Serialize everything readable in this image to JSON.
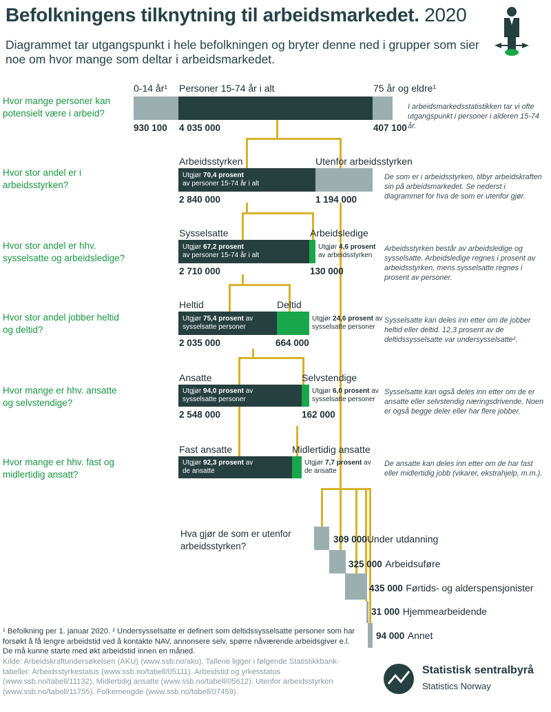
{
  "header": {
    "title": "Befolkningens tilknytning til arbeidsmarkedet.",
    "year": "2020",
    "subtitle": "Diagrammet tar utgangspunkt i hele befolkningen og bryter denne ned i grupper som sier noe om hvor mange som deltar i arbeidsmarkedet."
  },
  "questions": {
    "q1": "Hvor mange personer kan potensielt være i arbeid?",
    "q2": "Hvor stor andel er i arbeidsstyrken?",
    "q3": "Hvor stor andel er hhv. sysselsatte og arbeidsledige?",
    "q4": "Hvor stor andel jobber heltid og deltid?",
    "q5": "Hvor mange er hhv. ansatte og selvstendige?",
    "q6": "Hvor mange er hhv. fast og midlertidig ansatt?",
    "q7": "Hva gjør de som er utenfor arbeidsstyrken?"
  },
  "row1": {
    "left_label": "0-14 år¹",
    "mid_label": "Personer 15-74 år i alt",
    "right_label": "75 år og eldre¹",
    "left_value": "930 100",
    "mid_value": "4 035 000",
    "right_value": "407 100",
    "note": "I arbeidsmarkedsstatistikken tar vi ofte utgangspunkt i personer i alderen 15-74 år."
  },
  "row2": {
    "left_label": "Arbeidsstyrken",
    "right_label": "Utenfor arbeidsstyrken",
    "inbar_prefix": "Utgjør",
    "inbar_pct": "70,4 prosent",
    "inbar_line2": "av personer 15-74 år i alt",
    "left_value": "2 840 000",
    "right_value": "1 194 000",
    "note": "De som er i arbeidsstyrken, tilbyr arbeidskraften sin på arbeidsmarkedet. Se nederst i diagrammet for hva de som er utenfor gjør."
  },
  "row3": {
    "left_label": "Sysselsatte",
    "right_label": "Arbeidsledige",
    "inbar_prefix": "Utgjør",
    "inbar_pct": "67,2 prosent",
    "inbar_line2": "av personer 15-74 år i alt",
    "out_prefix": "Utgjør",
    "out_pct": "4,6 prosent",
    "out_line2": "av arbeidsstyrken",
    "left_value": "2 710 000",
    "right_value": "130 000",
    "note": "Arbeidsstyrken består av arbeidsledige og sysselsatte. Arbeidsledige regnes i prosent av arbeidsstyrken, mens sysselsatte regnes i prosent av personer."
  },
  "row4": {
    "left_label": "Heltid",
    "right_label": "Deltid",
    "inbar_prefix": "Utgjør",
    "inbar_pct": "75,4 prosent",
    "inbar_suffix": "av",
    "inbar_line2": "sysselsatte personer",
    "out_prefix": "Utgjør",
    "out_pct": "24,6 prosent",
    "out_suffix": "av",
    "out_line2": "sysselsatte personer",
    "left_value": "2 035 000",
    "right_value": "664 000",
    "note": "Sysselsatte kan deles inn etter om de jobber heltid eller deltid. 12,3 prosent av de deltidssysselsatte var undersysselsatte²."
  },
  "row5": {
    "left_label": "Ansatte",
    "right_label": "Selvstendige",
    "inbar_prefix": "Utgjør",
    "inbar_pct": "94,0 prosent",
    "inbar_suffix": "av",
    "inbar_line2": "sysselsatte personer",
    "out_prefix": "Utgjør",
    "out_pct": "6,0 prosent",
    "out_suffix": "av",
    "out_line2": "sysselsatte personer",
    "left_value": "2 548 000",
    "right_value": "162 000",
    "note": "Sysselsatte kan også deles inn etter om de er ansatte eller selvstendig næringsdrivende. Noen er også begge deler eller har flere jobber."
  },
  "row6": {
    "left_label": "Fast ansatte",
    "right_label": "Midlertidig ansatte",
    "inbar_prefix": "Utgjør",
    "inbar_pct": "92,3 prosent",
    "inbar_suffix": "av",
    "inbar_line2": "de ansatte",
    "out_prefix": "Utgjør",
    "out_pct": "7,7 prosent",
    "out_suffix": "av",
    "out_line2": "de ansatte",
    "note": "De ansatte kan deles inn etter om de har fast eller midlertidig jobb (vikarer, ekstrahjelp, m.m.)."
  },
  "outside": [
    {
      "value": "309 000",
      "label": "Under utdanning"
    },
    {
      "value": "325 000",
      "label": "Arbeidsuføre"
    },
    {
      "value": "435 000",
      "label": "Førtids- og alderspensjonister"
    },
    {
      "value": "31 000",
      "label": "Hjemmearbeidende"
    },
    {
      "value": "94 000",
      "label": "Annet"
    }
  ],
  "footnote": "¹ Befolkning per 1. januar 2020. ² Undersysselsatte er definert som deltidssysselsatte personer som har forsøkt å få lengre arbeidstid ved å kontakte NAV, annonsere selv, spørre nåværende arbeidsgiver e.l. De må kunne starte med økt arbeidstid innen en måned.",
  "sources": "Kilde: Arbeidskraftundersøkelsen (AKU) (www.ssb.no/aku). Tallene ligger i følgende Statistikkbank-tabeller: Arbeidsstyrkestatus (www.ssb.no/tabell/05111). Arbeidstid og yrkesstatus (www.ssb.no/tabell/11132). Midlertidig ansatte (www.ssb.no/tabell/05612). Utenfor arbeidsstyrken (www.ssb.no/tabell/11755). Folkemengde (www.ssb.no/tabell/07459).",
  "logo": {
    "name": "Statistisk sentralbyrå",
    "sub": "Statistics Norway"
  },
  "colors": {
    "dark": "#26403f",
    "grey": "#9bafb1",
    "green": "#1aa64a",
    "connector": "#d7b22a",
    "question": "#1a9641"
  }
}
